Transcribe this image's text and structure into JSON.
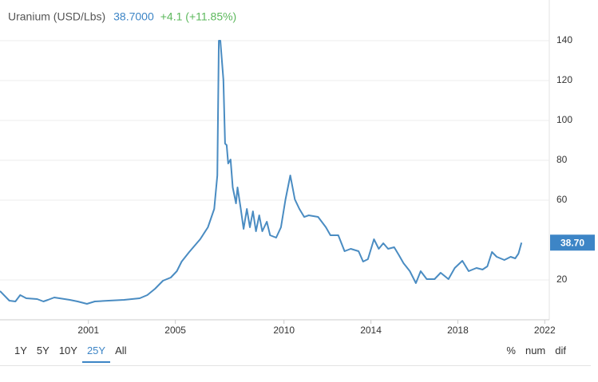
{
  "chart_data": {
    "type": "line",
    "title": "Uranium (USD/Lbs)",
    "price": "38.7000",
    "change": "+4.1 (+11.85%)",
    "color": "#4a8cc2",
    "grid": true,
    "y_axis_side": "right",
    "last_value_label": "38.70",
    "x": [
      1996.93,
      1997.36,
      1997.64,
      1997.86,
      1998.14,
      1998.64,
      1998.93,
      1999.14,
      1999.43,
      2000.14,
      2000.5,
      2000.93,
      2001.29,
      2001.93,
      2002.64,
      2003.36,
      2003.71,
      2004.07,
      2004.43,
      2004.79,
      2005.07,
      2005.29,
      2005.64,
      2006.14,
      2006.5,
      2006.79,
      2006.93,
      2007,
      2007.07,
      2007.21,
      2007.29,
      2007.36,
      2007.43,
      2007.54,
      2007.64,
      2007.79,
      2007.86,
      2008,
      2008.14,
      2008.29,
      2008.43,
      2008.57,
      2008.71,
      2008.86,
      2009,
      2009.21,
      2009.36,
      2009.64,
      2009.86,
      2010.07,
      2010.29,
      2010.5,
      2010.71,
      2010.93,
      2011.14,
      2011.57,
      2011.93,
      2012.14,
      2012.5,
      2012.79,
      2013.07,
      2013.43,
      2013.64,
      2013.86,
      2014.14,
      2014.36,
      2014.57,
      2014.79,
      2015.07,
      2015.29,
      2015.5,
      2015.79,
      2016.07,
      2016.29,
      2016.57,
      2016.93,
      2017.21,
      2017.57,
      2017.86,
      2018.21,
      2018.5,
      2018.86,
      2019.14,
      2019.36,
      2019.57,
      2019.79,
      2020.14,
      2020.43,
      2020.64,
      2020.79,
      2020.93
    ],
    "values": [
      14.4,
      9.6,
      9.2,
      12.4,
      10.8,
      10.4,
      9.2,
      10,
      11.2,
      10,
      9.2,
      8,
      9.2,
      9.6,
      10,
      10.8,
      12.4,
      15.6,
      19.6,
      21.2,
      24.4,
      29.2,
      34,
      40.4,
      46.4,
      55.6,
      72.4,
      140,
      140,
      120.4,
      88.4,
      87.6,
      78.4,
      80.4,
      66.4,
      58.4,
      66.4,
      56.4,
      45.6,
      55.6,
      46.4,
      54.4,
      44.4,
      52.4,
      44.4,
      49.2,
      42.4,
      41.2,
      46.4,
      60.4,
      72.4,
      60.4,
      55.6,
      51.6,
      52.4,
      51.6,
      46.4,
      42.4,
      42.4,
      34.4,
      35.6,
      34.4,
      29.2,
      30.4,
      40.4,
      35.6,
      38.4,
      35.6,
      36.4,
      32.4,
      28.4,
      24.4,
      18.4,
      24.4,
      20.4,
      20.4,
      23.6,
      20.4,
      26,
      29.6,
      24.4,
      26,
      25.2,
      26.8,
      34,
      31.6,
      30,
      31.6,
      30.8,
      33.2,
      38.7
    ],
    "xlim": [
      1996.93,
      2022.21
    ],
    "xticks": [
      2001,
      2005,
      2010,
      2014,
      2018,
      2022
    ],
    "ylim": [
      0,
      160
    ],
    "yticks": [
      20,
      60,
      80,
      100,
      120,
      140
    ]
  },
  "controls": {
    "ranges": [
      "1Y",
      "5Y",
      "10Y",
      "25Y",
      "All"
    ],
    "active_range": 3,
    "modes": [
      "%",
      "num",
      "dif"
    ]
  }
}
